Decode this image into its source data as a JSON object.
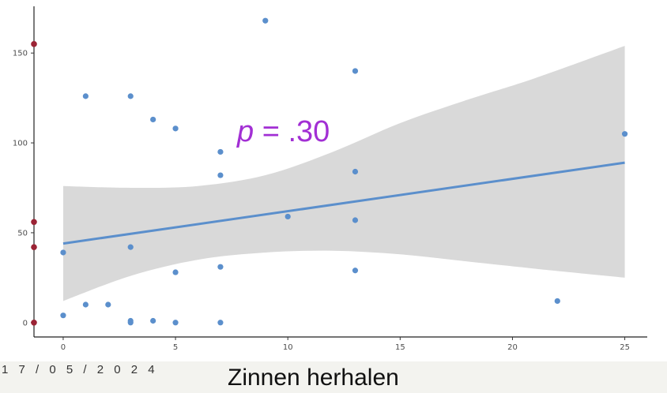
{
  "slide": {
    "date": "1 7 / 0 5 / 2 0 2 4"
  },
  "chart_data": {
    "type": "scatter",
    "xlabel": "Zinnen herhalen",
    "ylabel": "",
    "xlim": [
      -1.3,
      26
    ],
    "ylim": [
      -8,
      176
    ],
    "xticks": [
      0,
      5,
      10,
      15,
      20,
      25
    ],
    "yticks": [
      0,
      50,
      100,
      150
    ],
    "grid": false,
    "annotation": {
      "italic": "p",
      "rest": " = .30",
      "color": "#a22fd4"
    },
    "point_color": "#5b8fcc",
    "line_color": "#5b8fcc",
    "band_color": "#d9d9d9",
    "marginal_color": "#9b2335",
    "points": [
      {
        "x": 0,
        "y": 4
      },
      {
        "x": 0,
        "y": 39
      },
      {
        "x": 1,
        "y": 10
      },
      {
        "x": 1,
        "y": 126
      },
      {
        "x": 2,
        "y": 10
      },
      {
        "x": 3,
        "y": 0
      },
      {
        "x": 3,
        "y": 1
      },
      {
        "x": 3,
        "y": 42
      },
      {
        "x": 3,
        "y": 126
      },
      {
        "x": 4,
        "y": 1
      },
      {
        "x": 4,
        "y": 113
      },
      {
        "x": 5,
        "y": 0
      },
      {
        "x": 5,
        "y": 28
      },
      {
        "x": 5,
        "y": 108
      },
      {
        "x": 7,
        "y": 0
      },
      {
        "x": 7,
        "y": 31
      },
      {
        "x": 7,
        "y": 82
      },
      {
        "x": 7,
        "y": 95
      },
      {
        "x": 9,
        "y": 168
      },
      {
        "x": 10,
        "y": 59
      },
      {
        "x": 13,
        "y": 29
      },
      {
        "x": 13,
        "y": 57
      },
      {
        "x": 13,
        "y": 84
      },
      {
        "x": 13,
        "y": 140
      },
      {
        "x": 22,
        "y": 12
      },
      {
        "x": 25,
        "y": 105
      }
    ],
    "fit_line": [
      {
        "x": 0,
        "y": 44
      },
      {
        "x": 25,
        "y": 89
      }
    ],
    "confidence_band": {
      "x": [
        0,
        3,
        6,
        9,
        12,
        15,
        18,
        21,
        25
      ],
      "upper": [
        76,
        75,
        76,
        82,
        95,
        111,
        124,
        136,
        154
      ],
      "lower": [
        12,
        26,
        35,
        39,
        40,
        38,
        34,
        30,
        25
      ]
    },
    "marginal_points_y": [
      155,
      56,
      42,
      0
    ]
  }
}
